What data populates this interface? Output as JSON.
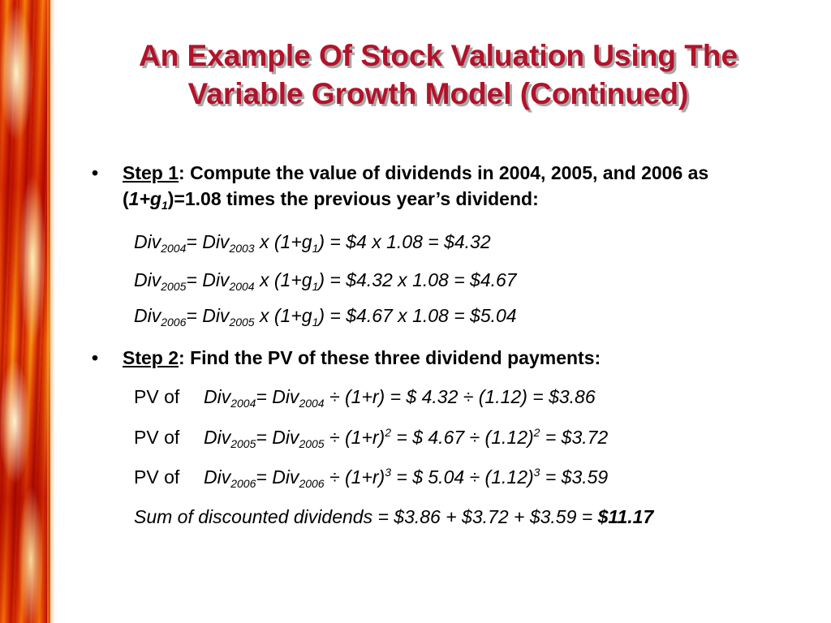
{
  "title": {
    "line1": "An Example Of Stock Valuation Using The",
    "line2": "Variable Growth Model (Continued)"
  },
  "step1": {
    "bullet": "•",
    "label": "Step 1",
    "text_a": ": Compute the value of dividends in 2004, 2005, and 2006 as (",
    "factor": "1+g",
    "factor_sub": "1",
    "text_b": ")=1.08 times the previous year’s dividend:"
  },
  "step1_equations": [
    {
      "lhs": "Div",
      "lhs_sub": "2004",
      "eq": "= Div",
      "rhs_sub": "2003",
      "expr": " x (1+g",
      "g_sub": "1",
      "result": ") = $4 x 1.08 = $4.32"
    },
    {
      "lhs": "Div",
      "lhs_sub": "2005",
      "eq": "= Div",
      "rhs_sub": "2004",
      "expr": " x (1+g",
      "g_sub": "1",
      "result": ") = $4.32 x 1.08 = $4.67"
    },
    {
      "lhs": "Div",
      "lhs_sub": "2006",
      "eq": "= Div",
      "rhs_sub": "2005",
      "expr": " x (1+g",
      "g_sub": "1",
      "result": ") = $4.67 x 1.08 = $5.04"
    }
  ],
  "step2": {
    "bullet": "•",
    "label": "Step 2",
    "text": ": Find the PV of these three dividend payments:"
  },
  "step2_equations": [
    {
      "pv": "PV of",
      "lhs": "Div",
      "lhs_sub": "2004",
      "eq": "= Div",
      "rhs_sub": "2004",
      "div1": " ÷ (1+r)",
      "exp1": "",
      "mid": " = $ 4.32 ÷ (1.12)",
      "exp2": "",
      "result": " = $3.86"
    },
    {
      "pv": "PV of",
      "lhs": "Div",
      "lhs_sub": "2005",
      "eq": "= Div",
      "rhs_sub": "2005",
      "div1": " ÷ (1+r)",
      "exp1": "2",
      "mid": " = $ 4.67 ÷ (1.12)",
      "exp2": "2",
      "result": " = $3.72"
    },
    {
      "pv": "PV of",
      "lhs": "Div",
      "lhs_sub": "2006",
      "eq": "= Div",
      "rhs_sub": "2006",
      "div1": " ÷ (1+r)",
      "exp1": "3",
      "mid": " = $ 5.04 ÷ (1.12)",
      "exp2": "3",
      "result": " = $3.59"
    }
  ],
  "sum": {
    "text": "Sum of discounted dividends = $3.86 + $3.72 + $3.59 = ",
    "total": "$11.17"
  }
}
